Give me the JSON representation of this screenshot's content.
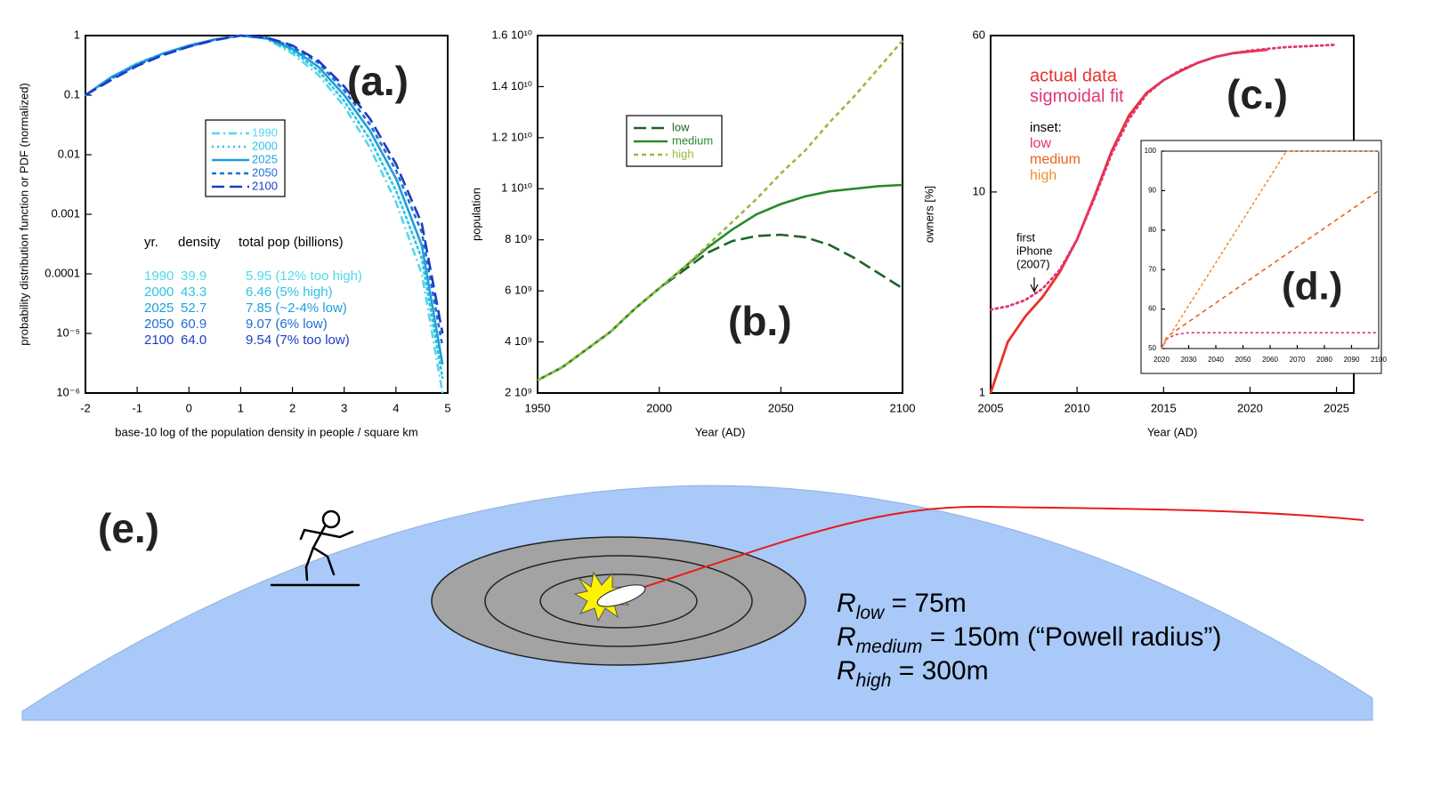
{
  "chart_data": [
    {
      "type": "line",
      "panel_label": "(a.)",
      "xlabel": "base-10 log of the population density in people / square km",
      "ylabel": "probability distribution function or PDF (normalized)",
      "log_y": true,
      "x": [
        -2,
        -1.5,
        -1,
        -0.5,
        0,
        0.5,
        1,
        1.5,
        2,
        2.5,
        3,
        3.5,
        4,
        4.5,
        4.9
      ],
      "xlim": [
        -2,
        5
      ],
      "xticks": [
        -2,
        -1,
        0,
        1,
        2,
        3,
        4,
        5
      ],
      "ylim": [
        1e-06,
        1
      ],
      "yticks": [
        1,
        0.1,
        0.01,
        0.001,
        0.0001,
        {
          "value": 1e-05,
          "label": "10⁻⁵"
        },
        {
          "value": 1e-06,
          "label": "10⁻⁶"
        }
      ],
      "series": [
        {
          "name": "1990",
          "color": "#52d8ea",
          "line_style": "dashdot",
          "values": [
            0.1,
            0.2,
            0.34,
            0.5,
            0.68,
            0.86,
            1,
            0.88,
            0.5,
            0.22,
            0.065,
            0.013,
            0.0016,
            0.0001,
            1e-06
          ]
        },
        {
          "name": "2000",
          "color": "#2cc3e2",
          "line_style": "dotted",
          "values": [
            0.1,
            0.2,
            0.34,
            0.5,
            0.68,
            0.86,
            1,
            0.89,
            0.55,
            0.26,
            0.08,
            0.018,
            0.0025,
            0.00018,
            1.8e-06
          ]
        },
        {
          "name": "2025",
          "color": "#1c9fdc",
          "line_style": "solid",
          "values": [
            0.1,
            0.2,
            0.33,
            0.5,
            0.68,
            0.86,
            1,
            0.9,
            0.6,
            0.3,
            0.1,
            0.025,
            0.004,
            0.0003,
            3e-06
          ]
        },
        {
          "name": "2050",
          "color": "#1d6ed6",
          "line_style": "short-dash",
          "values": [
            0.1,
            0.19,
            0.32,
            0.48,
            0.66,
            0.85,
            1,
            0.92,
            0.65,
            0.35,
            0.12,
            0.032,
            0.0055,
            0.0005,
            6e-06
          ]
        },
        {
          "name": "2100",
          "color": "#1a3dc2",
          "line_style": "long-dash",
          "values": [
            0.1,
            0.18,
            0.31,
            0.47,
            0.65,
            0.84,
            1,
            0.93,
            0.68,
            0.38,
            0.14,
            0.04,
            0.007,
            0.0007,
            1e-05
          ]
        }
      ],
      "table": {
        "columns": [
          "yr.",
          "density",
          "total pop (billions)"
        ],
        "rows": [
          [
            "1990",
            "39.9",
            "5.95 (12% too high)"
          ],
          [
            "2000",
            "43.3",
            "6.46 (5% high)"
          ],
          [
            "2025",
            "52.7",
            "7.85 (~2-4% low)"
          ],
          [
            "2050",
            "60.9",
            "9.07 (6% low)"
          ],
          [
            "2100",
            "64.0",
            "9.54 (7% too low)"
          ]
        ]
      }
    },
    {
      "type": "line",
      "panel_label": "(b.)",
      "xlabel": "Year (AD)",
      "ylabel": "population",
      "x": [
        1950,
        1960,
        1970,
        1980,
        1990,
        2000,
        2010,
        2020,
        2030,
        2040,
        2050,
        2060,
        2070,
        2080,
        2090,
        2100
      ],
      "xlim": [
        1950,
        2100
      ],
      "xticks": [
        1950,
        2000,
        2050,
        2100
      ],
      "ylim": [
        2000000000,
        16000000000
      ],
      "yticks": [
        {
          "value": 2000000000,
          "label": "2 10⁹"
        },
        {
          "value": 4000000000,
          "label": "4 10⁹"
        },
        {
          "value": 6000000000,
          "label": "6 10⁹"
        },
        {
          "value": 8000000000,
          "label": "8 10⁹"
        },
        {
          "value": 10000000000,
          "label": "1 10¹⁰"
        },
        {
          "value": 12000000000,
          "label": "1.2 10¹⁰"
        },
        {
          "value": 14000000000,
          "label": "1.4 10¹⁰"
        },
        {
          "value": 16000000000,
          "label": "1.6 10¹⁰"
        }
      ],
      "series": [
        {
          "name": "low",
          "color": "#1d6428",
          "line_style": "long-dash",
          "values": [
            2500000000,
            3000000000,
            3700000000,
            4400000000,
            5300000000,
            6100000000,
            6800000000,
            7500000000,
            7950000000,
            8150000000,
            8200000000,
            8100000000,
            7800000000,
            7300000000,
            6700000000,
            6100000000
          ]
        },
        {
          "name": "medium",
          "color": "#2a8a2a",
          "line_style": "solid",
          "values": [
            2500000000,
            3000000000,
            3700000000,
            4400000000,
            5300000000,
            6100000000,
            6900000000,
            7700000000,
            8400000000,
            9000000000,
            9400000000,
            9700000000,
            9900000000,
            10000000000,
            10100000000,
            10150000000
          ]
        },
        {
          "name": "high",
          "color": "#9cb93c",
          "line_style": "short-dash",
          "values": [
            2500000000,
            3000000000,
            3700000000,
            4400000000,
            5300000000,
            6100000000,
            6900000000,
            7800000000,
            8700000000,
            9600000000,
            10600000000,
            11500000000,
            12600000000,
            13600000000,
            14700000000,
            15800000000
          ]
        }
      ]
    },
    {
      "type": "line",
      "panel_label": "(c.)",
      "xlabel": "Year (AD)",
      "ylabel": "owners [%]",
      "log_y": true,
      "xlim": [
        2005,
        2026
      ],
      "xticks": [
        2005,
        2010,
        2015,
        2020,
        2025
      ],
      "ylim": [
        1,
        60
      ],
      "yticks": [
        1,
        10,
        60
      ],
      "series": [
        {
          "name": "actual data",
          "color": "#e8322a",
          "line_style": "solid",
          "x": [
            2005,
            2006,
            2007,
            2008,
            2009,
            2010,
            2011,
            2012,
            2013,
            2014,
            2015,
            2016,
            2017,
            2018,
            2019,
            2020,
            2021
          ],
          "values": [
            1,
            1.8,
            2.4,
            3,
            4,
            5.8,
            9.5,
            16,
            24,
            31,
            36,
            40,
            44,
            47,
            49,
            50,
            51
          ]
        },
        {
          "name": "sigmoidal fit",
          "color": "#e0357a",
          "line_style": "dotted",
          "x": [
            2005,
            2006,
            2007,
            2008,
            2009,
            2010,
            2011,
            2012,
            2013,
            2014,
            2015,
            2016,
            2017,
            2018,
            2019,
            2020,
            2021,
            2022,
            2023,
            2024,
            2025
          ],
          "values": [
            2.6,
            2.7,
            2.9,
            3.3,
            4.1,
            5.8,
            9.3,
            15.5,
            23,
            30.5,
            36,
            40.5,
            44,
            47,
            49,
            50.5,
            51.5,
            52.5,
            53,
            53.5,
            54
          ]
        }
      ],
      "inset_label": "inset:",
      "annotation": [
        "first",
        "iPhone",
        "(2007)"
      ]
    },
    {
      "type": "line",
      "panel_label": "(d.)",
      "xlim": [
        2020,
        2100
      ],
      "xticks": [
        2020,
        2030,
        2040,
        2050,
        2060,
        2070,
        2080,
        2090,
        2100
      ],
      "ylim": [
        50,
        100
      ],
      "yticks": [
        50,
        60,
        70,
        80,
        90,
        100
      ],
      "series": [
        {
          "name": "low",
          "color": "#e0357a",
          "line_style": "dotted",
          "x": [
            2020,
            2022,
            2025,
            2030,
            2050,
            2100
          ],
          "values": [
            50,
            52.5,
            53.5,
            54,
            54,
            54
          ]
        },
        {
          "name": "medium",
          "color": "#e8641e",
          "line_style": "short-dash",
          "x": [
            2020,
            2022,
            2100
          ],
          "values": [
            50,
            53,
            90
          ]
        },
        {
          "name": "high",
          "color": "#f09030",
          "line_style": "dotted",
          "x": [
            2020,
            2066,
            2100
          ],
          "values": [
            50,
            100,
            100
          ]
        }
      ]
    }
  ],
  "diagram": {
    "label": "(e.)",
    "radii": [
      {
        "symbol": "R",
        "subscript": "low",
        "text": " = 75m"
      },
      {
        "symbol": "R",
        "subscript": "medium",
        "text": " = 150m (“Powell radius”)"
      },
      {
        "symbol": "R",
        "subscript": "high",
        "text": " = 300m"
      }
    ]
  }
}
